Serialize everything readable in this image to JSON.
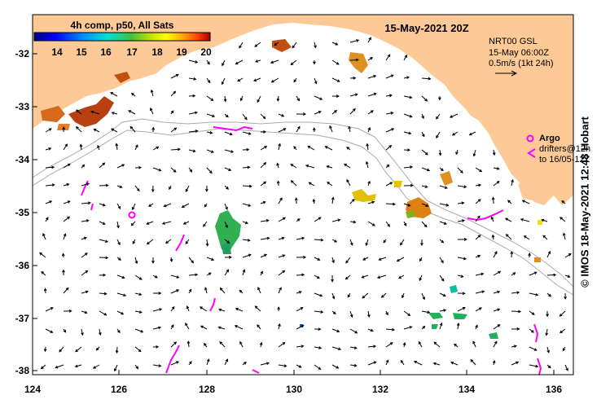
{
  "map": {
    "title": "15-May-2021 20Z",
    "colorbar": {
      "label": "4h comp, p50, All Sats",
      "ticks": [
        "14",
        "15",
        "16",
        "17",
        "18",
        "19",
        "20"
      ],
      "colors": [
        "#00007f",
        "#0000ff",
        "#0080ff",
        "#00e0ff",
        "#20c080",
        "#40c040",
        "#a0e000",
        "#ffff00",
        "#ffb000",
        "#ff6000",
        "#e02000",
        "#a00000"
      ]
    },
    "currents": {
      "source": "NRT00 GSL",
      "date": "15-May 06:00Z",
      "scale": "0.5m/s (1kt 24h)"
    },
    "argo": {
      "title": "Argo",
      "line1": "drifters@12h",
      "line2": "to 16/05-12Z"
    },
    "credit": "© IMOS 18-May-2021 12:48 Hobart",
    "xticks": [
      "124",
      "126",
      "128",
      "130",
      "132",
      "134",
      "136"
    ],
    "yticks": [
      "-32",
      "-33",
      "-34",
      "-35",
      "-36",
      "-37",
      "-38"
    ],
    "colors": {
      "land": "#fdc996",
      "drifter": "#ff00ff",
      "shelf": "#aaaaaa"
    }
  }
}
